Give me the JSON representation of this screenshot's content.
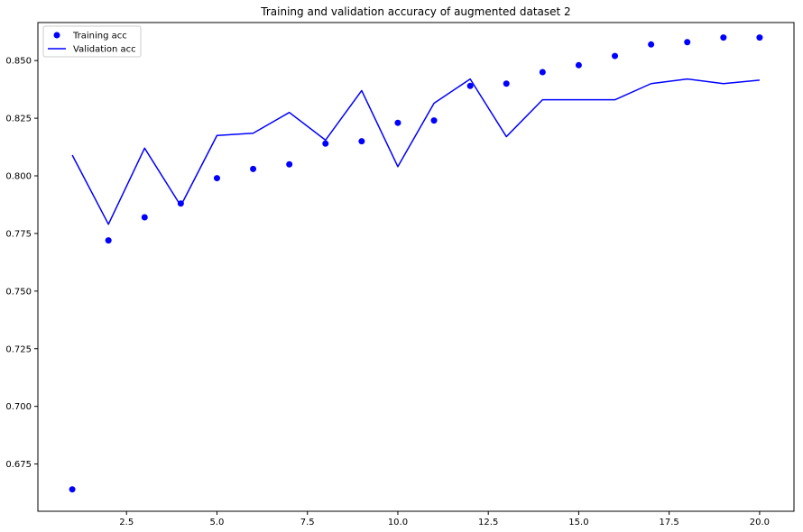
{
  "chart_data": {
    "type": "line",
    "title": "Training and validation accuracy of augmented dataset 2",
    "xlabel": "",
    "ylabel": "",
    "xlim": [
      0.05,
      20.95
    ],
    "ylim": [
      0.6545,
      0.8665
    ],
    "xticks": [
      2.5,
      5.0,
      7.5,
      10.0,
      12.5,
      15.0,
      17.5,
      20.0
    ],
    "xtick_labels": [
      "2.5",
      "5.0",
      "7.5",
      "10.0",
      "12.5",
      "15.0",
      "17.5",
      "20.0"
    ],
    "yticks": [
      0.675,
      0.7,
      0.725,
      0.75,
      0.775,
      0.8,
      0.825,
      0.85
    ],
    "ytick_labels": [
      "0.675",
      "0.700",
      "0.725",
      "0.750",
      "0.775",
      "0.800",
      "0.825",
      "0.850"
    ],
    "grid": false,
    "legend_position": "top-left",
    "x": [
      1,
      2,
      3,
      4,
      5,
      6,
      7,
      8,
      9,
      10,
      11,
      12,
      13,
      14,
      15,
      16,
      17,
      18,
      19,
      20
    ],
    "series": [
      {
        "name": "Training acc",
        "style": "points",
        "color": "#0000ff",
        "values": [
          0.664,
          0.772,
          0.782,
          0.788,
          0.799,
          0.803,
          0.805,
          0.814,
          0.815,
          0.823,
          0.824,
          0.839,
          0.84,
          0.845,
          0.848,
          0.852,
          0.857,
          0.858,
          0.86,
          0.86
        ]
      },
      {
        "name": "Validation acc",
        "style": "line",
        "color": "#0000ff",
        "values": [
          0.809,
          0.779,
          0.812,
          0.787,
          0.8175,
          0.8185,
          0.8275,
          0.8155,
          0.837,
          0.804,
          0.8315,
          0.842,
          0.817,
          0.833,
          0.833,
          0.833,
          0.84,
          0.842,
          0.84,
          0.8415
        ]
      }
    ]
  }
}
